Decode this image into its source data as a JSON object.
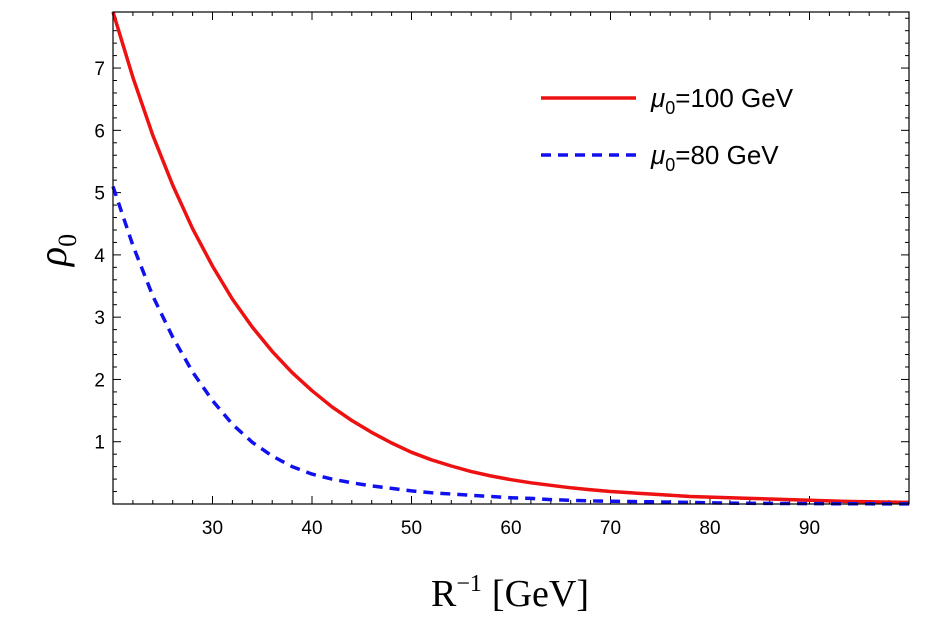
{
  "chart_data": {
    "type": "line",
    "xlabel": "R",
    "xlabel_sup": "−1",
    "xlabel_unit": "[GeV]",
    "ylabel": "ρ",
    "ylabel_sub": "0",
    "xlim": [
      20,
      100
    ],
    "ylim": [
      0,
      7.9
    ],
    "xticks": [
      30,
      40,
      50,
      60,
      70,
      80,
      90
    ],
    "yticks": [
      1,
      2,
      3,
      4,
      5,
      6,
      7
    ],
    "legend_position": "top-right",
    "series": [
      {
        "legend_symbol": "μ",
        "legend_sub": "0",
        "legend_rest": "=100 GeV",
        "color": "#ee1111",
        "style": "solid",
        "x": [
          20,
          22,
          24,
          26,
          28,
          30,
          32,
          34,
          36,
          38,
          40,
          42,
          44,
          46,
          48,
          50,
          52,
          54,
          56,
          58,
          60,
          62,
          64,
          66,
          68,
          70,
          72,
          74,
          76,
          78,
          80,
          82,
          84,
          86,
          88,
          90,
          92,
          94,
          96,
          98,
          100
        ],
        "y": [
          7.9,
          6.85,
          5.92,
          5.12,
          4.42,
          3.82,
          3.29,
          2.84,
          2.45,
          2.11,
          1.82,
          1.56,
          1.34,
          1.15,
          0.98,
          0.83,
          0.71,
          0.61,
          0.52,
          0.45,
          0.39,
          0.34,
          0.3,
          0.26,
          0.23,
          0.2,
          0.18,
          0.16,
          0.14,
          0.12,
          0.11,
          0.1,
          0.09,
          0.08,
          0.07,
          0.06,
          0.05,
          0.04,
          0.035,
          0.03,
          0.025
        ]
      },
      {
        "legend_symbol": "μ",
        "legend_sub": "0",
        "legend_rest": "=80 GeV",
        "color": "#1111ee",
        "style": "dashed",
        "x": [
          20,
          22,
          24,
          26,
          28,
          30,
          32,
          34,
          36,
          38,
          40,
          42,
          44,
          46,
          48,
          50,
          52,
          54,
          56,
          58,
          60,
          62,
          64,
          66,
          68,
          70,
          72,
          74,
          76,
          78,
          80,
          82,
          84,
          86,
          88,
          90,
          92,
          94,
          96,
          98,
          100
        ],
        "y": [
          5.1,
          4.15,
          3.34,
          2.68,
          2.12,
          1.66,
          1.28,
          0.99,
          0.77,
          0.6,
          0.48,
          0.4,
          0.34,
          0.29,
          0.25,
          0.21,
          0.18,
          0.16,
          0.14,
          0.12,
          0.1,
          0.09,
          0.07,
          0.06,
          0.05,
          0.045,
          0.04,
          0.035,
          0.03,
          0.025,
          0.02,
          0.015,
          0.012,
          0.01,
          0.008,
          0.006,
          0.005,
          0.004,
          0.003,
          0.002,
          0.001
        ]
      }
    ]
  }
}
